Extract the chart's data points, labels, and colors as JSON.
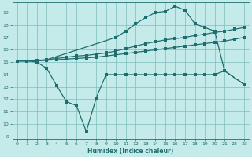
{
  "xlabel": "Humidex (Indice chaleur)",
  "bg_color": "#c5eaea",
  "grid_color": "#7dbcbc",
  "line_color": "#1e6e6e",
  "xlim": [
    -0.5,
    23.5
  ],
  "ylim": [
    8.8,
    19.8
  ],
  "xticks": [
    0,
    1,
    2,
    3,
    4,
    5,
    6,
    7,
    8,
    9,
    10,
    11,
    12,
    13,
    14,
    15,
    16,
    17,
    18,
    19,
    20,
    21,
    22,
    23
  ],
  "yticks": [
    9,
    10,
    11,
    12,
    13,
    14,
    15,
    16,
    17,
    18,
    19
  ],
  "curve_top_x": [
    0,
    1,
    2,
    3,
    10,
    11,
    12,
    13,
    14,
    15,
    16,
    17,
    18,
    19,
    20,
    21,
    23
  ],
  "curve_top_y": [
    15.1,
    15.1,
    15.1,
    15.2,
    17.0,
    17.5,
    18.1,
    18.6,
    19.0,
    19.1,
    19.5,
    19.2,
    18.1,
    17.8,
    17.5,
    14.3,
    13.2
  ],
  "curve_mid2_x": [
    0,
    1,
    2,
    3,
    4,
    5,
    6,
    7,
    8,
    9,
    10,
    11,
    12,
    13,
    14,
    15,
    16,
    17,
    18,
    19,
    20,
    21,
    22,
    23
  ],
  "curve_mid2_y": [
    15.1,
    15.1,
    15.15,
    15.2,
    15.3,
    15.4,
    15.5,
    15.55,
    15.65,
    15.75,
    15.9,
    16.1,
    16.3,
    16.5,
    16.65,
    16.8,
    16.9,
    17.0,
    17.15,
    17.25,
    17.4,
    17.5,
    17.65,
    17.8
  ],
  "curve_mid1_x": [
    0,
    1,
    2,
    3,
    4,
    5,
    6,
    7,
    8,
    9,
    10,
    11,
    12,
    13,
    14,
    15,
    16,
    17,
    18,
    19,
    20,
    21,
    22,
    23
  ],
  "curve_mid1_y": [
    15.1,
    15.1,
    15.1,
    15.15,
    15.2,
    15.25,
    15.3,
    15.35,
    15.4,
    15.5,
    15.6,
    15.7,
    15.8,
    15.9,
    16.0,
    16.1,
    16.2,
    16.3,
    16.4,
    16.5,
    16.6,
    16.7,
    16.85,
    17.0
  ],
  "curve_bot_x": [
    0,
    1,
    2,
    3,
    4,
    5,
    6,
    7,
    8,
    9,
    10,
    11,
    12,
    13,
    14,
    15,
    16,
    17,
    18,
    19,
    20,
    21,
    23
  ],
  "curve_bot_y": [
    15.1,
    15.1,
    15.0,
    14.5,
    13.1,
    11.8,
    11.5,
    9.4,
    12.1,
    14.0,
    14.0,
    14.0,
    14.0,
    14.0,
    14.0,
    14.0,
    14.0,
    14.0,
    14.0,
    14.0,
    14.0,
    14.3,
    13.2
  ],
  "marker_size": 2.2,
  "linewidth": 0.9
}
